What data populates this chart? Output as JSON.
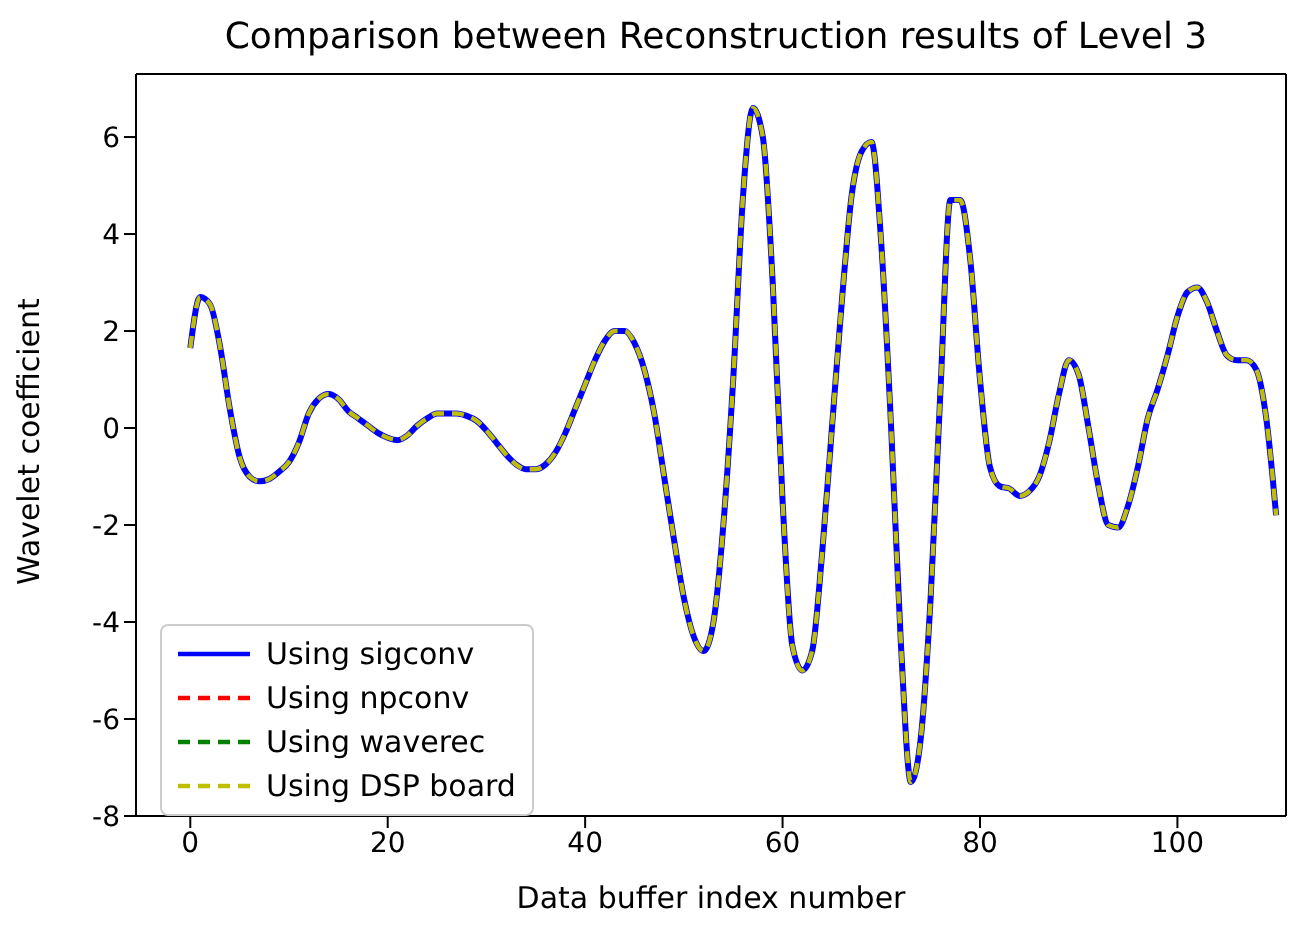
{
  "chart_data": {
    "type": "line",
    "title": "Comparison between Reconstruction results of Level 3",
    "xlabel": "Data buffer index number",
    "ylabel": "Wavelet coefficient",
    "x": [
      0,
      1,
      2,
      3,
      4,
      5,
      6,
      7,
      8,
      9,
      10,
      11,
      12,
      13,
      14,
      15,
      16,
      17,
      18,
      19,
      20,
      21,
      22,
      23,
      24,
      25,
      26,
      27,
      28,
      29,
      30,
      31,
      32,
      33,
      34,
      35,
      36,
      37,
      38,
      39,
      40,
      41,
      42,
      43,
      44,
      45,
      46,
      47,
      48,
      49,
      50,
      51,
      52,
      53,
      54,
      55,
      56,
      57,
      58,
      59,
      60,
      61,
      62,
      63,
      64,
      65,
      66,
      67,
      68,
      69,
      70,
      71,
      72,
      73,
      74,
      75,
      76,
      77,
      78,
      79,
      80,
      81,
      82,
      83,
      84,
      85,
      86,
      87,
      88,
      89,
      90,
      91,
      92,
      93,
      94,
      95,
      96,
      97,
      98,
      99,
      100,
      101,
      102,
      103,
      104,
      105,
      106,
      107,
      108,
      109,
      110
    ],
    "series": [
      {
        "name": "Using sigconv",
        "color": "#0000ff",
        "line_style": "solid",
        "values": [
          1.65,
          2.7,
          2.55,
          1.7,
          0.4,
          -0.6,
          -1.0,
          -1.1,
          -1.05,
          -0.9,
          -0.7,
          -0.3,
          0.3,
          0.6,
          0.7,
          0.6,
          0.35,
          0.2,
          0.05,
          -0.1,
          -0.2,
          -0.25,
          -0.15,
          0.05,
          0.2,
          0.3,
          0.3,
          0.3,
          0.25,
          0.15,
          -0.05,
          -0.3,
          -0.55,
          -0.75,
          -0.85,
          -0.85,
          -0.75,
          -0.5,
          -0.1,
          0.4,
          0.9,
          1.4,
          1.8,
          2.0,
          2.0,
          1.75,
          1.2,
          0.3,
          -1.0,
          -2.3,
          -3.5,
          -4.3,
          -4.6,
          -4.0,
          -2.0,
          1.0,
          4.8,
          6.6,
          6.0,
          3.0,
          -1.5,
          -4.5,
          -5.0,
          -4.6,
          -2.6,
          0.0,
          2.6,
          4.8,
          5.7,
          5.9,
          3.8,
          0.0,
          -4.5,
          -7.3,
          -6.4,
          -3.5,
          0.8,
          4.7,
          4.7,
          3.5,
          1.0,
          -0.8,
          -1.2,
          -1.25,
          -1.4,
          -1.3,
          -1.0,
          -0.3,
          0.7,
          1.4,
          1.1,
          0.0,
          -1.2,
          -2.0,
          -2.05,
          -1.6,
          -0.8,
          0.2,
          0.8,
          1.5,
          2.3,
          2.8,
          2.9,
          2.6,
          2.0,
          1.5,
          1.4,
          1.4,
          1.2,
          0.2,
          -1.8
        ]
      },
      {
        "name": "Using npconv",
        "color": "#ff0000",
        "line_style": "dashed",
        "values": [
          null,
          null,
          null,
          null,
          null,
          null,
          null,
          null,
          null,
          null,
          null,
          null,
          null,
          null,
          null,
          null,
          null,
          null,
          null,
          null,
          null,
          null,
          null,
          null,
          null,
          null,
          null,
          null,
          null,
          null,
          null,
          null,
          null,
          null,
          null,
          null,
          null,
          null,
          null,
          null,
          null,
          null,
          null,
          null,
          null,
          null,
          null,
          null,
          null,
          null,
          null,
          null,
          null,
          null,
          null,
          null,
          null,
          null,
          null,
          null,
          null,
          null,
          null,
          null,
          null,
          null,
          null,
          null,
          null,
          null,
          null,
          null,
          null,
          null,
          null,
          null,
          null,
          null,
          null,
          null,
          null,
          null,
          null,
          null,
          null,
          null,
          null,
          null,
          null,
          null,
          null,
          null,
          null,
          null,
          null,
          null,
          null,
          null,
          null,
          null,
          null,
          null,
          null,
          null,
          null,
          null,
          null,
          null,
          null,
          null,
          null
        ]
      },
      {
        "name": "Using waverec",
        "color": "#008000",
        "line_style": "dashed",
        "values": [
          null,
          null,
          null,
          null,
          null,
          null,
          null,
          null,
          null,
          null,
          null,
          null,
          null,
          null,
          null,
          null,
          null,
          null,
          null,
          null,
          null,
          null,
          null,
          null,
          null,
          null,
          null,
          null,
          null,
          null,
          null,
          null,
          null,
          null,
          null,
          null,
          null,
          null,
          null,
          null,
          null,
          null,
          null,
          null,
          null,
          null,
          null,
          null,
          null,
          null,
          null,
          null,
          null,
          null,
          null,
          null,
          null,
          null,
          null,
          null,
          null,
          null,
          null,
          null,
          null,
          null,
          null,
          null,
          null,
          null,
          null,
          null,
          null,
          null,
          null,
          null,
          null,
          null,
          null,
          null,
          null,
          null,
          null,
          null,
          null,
          null,
          null,
          null,
          null,
          null,
          null,
          null,
          null,
          null,
          null,
          null,
          null,
          null,
          null,
          null,
          null,
          null,
          null,
          null,
          null,
          null,
          null,
          null,
          null,
          null,
          null
        ]
      },
      {
        "name": "Using DSP board",
        "color": "#bfbf00",
        "line_style": "dashed",
        "values": [
          1.65,
          2.7,
          2.55,
          1.7,
          0.4,
          -0.6,
          -1.0,
          -1.1,
          -1.05,
          -0.9,
          -0.7,
          -0.3,
          0.3,
          0.6,
          0.7,
          0.6,
          0.35,
          0.2,
          0.05,
          -0.1,
          -0.2,
          -0.25,
          -0.15,
          0.05,
          0.2,
          0.3,
          0.3,
          0.3,
          0.25,
          0.15,
          -0.05,
          -0.3,
          -0.55,
          -0.75,
          -0.85,
          -0.85,
          -0.75,
          -0.5,
          -0.1,
          0.4,
          0.9,
          1.4,
          1.8,
          2.0,
          2.0,
          1.75,
          1.2,
          0.3,
          -1.0,
          -2.3,
          -3.5,
          -4.3,
          -4.6,
          -4.0,
          -2.0,
          1.0,
          4.8,
          6.6,
          6.0,
          3.0,
          -1.5,
          -4.5,
          -5.0,
          -4.6,
          -2.6,
          0.0,
          2.6,
          4.8,
          5.7,
          5.9,
          3.8,
          0.0,
          -4.5,
          -7.3,
          -6.4,
          -3.5,
          0.8,
          4.7,
          4.7,
          3.5,
          1.0,
          -0.8,
          -1.2,
          -1.25,
          -1.4,
          -1.3,
          -1.0,
          -0.3,
          0.7,
          1.4,
          1.1,
          0.0,
          -1.2,
          -2.0,
          -2.05,
          -1.6,
          -0.8,
          0.2,
          0.8,
          1.5,
          2.3,
          2.8,
          2.9,
          2.6,
          2.0,
          1.5,
          1.4,
          1.4,
          1.2,
          0.2,
          -1.8
        ]
      }
    ],
    "xlim": [
      -5.5,
      111
    ],
    "xticks": [
      0,
      20,
      40,
      60,
      80,
      100
    ],
    "ylim": [
      -8,
      7.3
    ],
    "yticks": [
      -8,
      -6,
      -4,
      -2,
      0,
      2,
      4,
      6
    ],
    "grid": false,
    "legend": "bottom left",
    "marker": "none"
  }
}
